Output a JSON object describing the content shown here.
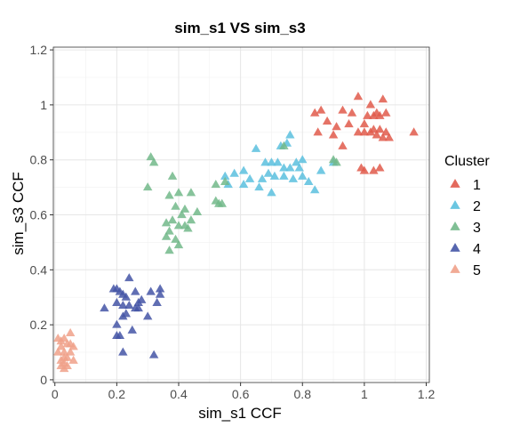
{
  "chart_data": {
    "type": "scatter",
    "title": "sim_s1 VS sim_s3",
    "xlabel": "sim_s1  CCF",
    "ylabel": "sim_s3  CCF",
    "xlim": [
      -0.005,
      1.21
    ],
    "ylim": [
      -0.01,
      1.21
    ],
    "x_ticks": [
      0,
      0.2,
      0.4,
      0.6,
      0.8,
      1,
      1.2
    ],
    "x_tick_labels": [
      "0",
      "0.2",
      "0.4",
      "0.6",
      "0.8",
      "1",
      "1.2"
    ],
    "y_ticks": [
      0,
      0.2,
      0.4,
      0.6,
      0.8,
      1,
      1.2
    ],
    "y_tick_labels": [
      "0",
      "0.2",
      "0.4",
      "0.6",
      "0.8",
      "1",
      "1.2"
    ],
    "grid": true,
    "marker": "triangle",
    "legend": {
      "title": "Cluster",
      "position": "right"
    },
    "series": [
      {
        "name": "1",
        "color": "#E05A4B",
        "points": [
          [
            0.98,
            1.03
          ],
          [
            1.02,
            1.0
          ],
          [
            1.06,
            1.02
          ],
          [
            0.93,
            0.98
          ],
          [
            0.96,
            0.97
          ],
          [
            1.04,
            0.97
          ],
          [
            1.05,
            0.96
          ],
          [
            1.07,
            0.97
          ],
          [
            0.84,
            0.97
          ],
          [
            0.86,
            0.98
          ],
          [
            0.88,
            0.94
          ],
          [
            1.01,
            0.96
          ],
          [
            1.03,
            0.96
          ],
          [
            0.91,
            0.92
          ],
          [
            0.95,
            0.93
          ],
          [
            1.0,
            0.93
          ],
          [
            1.03,
            0.91
          ],
          [
            1.05,
            0.91
          ],
          [
            0.85,
            0.9
          ],
          [
            0.9,
            0.89
          ],
          [
            0.98,
            0.9
          ],
          [
            1.0,
            0.9
          ],
          [
            1.02,
            0.9
          ],
          [
            1.04,
            0.89
          ],
          [
            1.07,
            0.9
          ],
          [
            1.08,
            0.88
          ],
          [
            1.16,
            0.9
          ],
          [
            0.99,
            0.77
          ],
          [
            1.0,
            0.76
          ],
          [
            1.03,
            0.76
          ],
          [
            1.05,
            0.77
          ],
          [
            0.93,
            0.85
          ],
          [
            1.06,
            0.88
          ]
        ]
      },
      {
        "name": "2",
        "color": "#5BC0DE",
        "points": [
          [
            0.76,
            0.89
          ],
          [
            0.75,
            0.86
          ],
          [
            0.73,
            0.85
          ],
          [
            0.65,
            0.84
          ],
          [
            0.7,
            0.79
          ],
          [
            0.68,
            0.79
          ],
          [
            0.72,
            0.79
          ],
          [
            0.78,
            0.79
          ],
          [
            0.8,
            0.8
          ],
          [
            0.79,
            0.77
          ],
          [
            0.76,
            0.77
          ],
          [
            0.74,
            0.77
          ],
          [
            0.61,
            0.76
          ],
          [
            0.55,
            0.74
          ],
          [
            0.58,
            0.75
          ],
          [
            0.63,
            0.73
          ],
          [
            0.67,
            0.73
          ],
          [
            0.69,
            0.75
          ],
          [
            0.71,
            0.74
          ],
          [
            0.74,
            0.74
          ],
          [
            0.77,
            0.73
          ],
          [
            0.8,
            0.74
          ],
          [
            0.86,
            0.76
          ],
          [
            0.9,
            0.79
          ],
          [
            0.82,
            0.72
          ],
          [
            0.66,
            0.7
          ],
          [
            0.61,
            0.71
          ],
          [
            0.56,
            0.71
          ],
          [
            0.84,
            0.69
          ],
          [
            0.7,
            0.68
          ]
        ]
      },
      {
        "name": "3",
        "color": "#72B88A",
        "points": [
          [
            0.31,
            0.81
          ],
          [
            0.32,
            0.79
          ],
          [
            0.38,
            0.74
          ],
          [
            0.44,
            0.68
          ],
          [
            0.46,
            0.61
          ],
          [
            0.4,
            0.68
          ],
          [
            0.37,
            0.67
          ],
          [
            0.39,
            0.63
          ],
          [
            0.42,
            0.62
          ],
          [
            0.41,
            0.6
          ],
          [
            0.44,
            0.58
          ],
          [
            0.42,
            0.56
          ],
          [
            0.43,
            0.55
          ],
          [
            0.4,
            0.56
          ],
          [
            0.38,
            0.58
          ],
          [
            0.36,
            0.57
          ],
          [
            0.37,
            0.54
          ],
          [
            0.36,
            0.52
          ],
          [
            0.39,
            0.51
          ],
          [
            0.4,
            0.49
          ],
          [
            0.37,
            0.47
          ],
          [
            0.52,
            0.71
          ],
          [
            0.52,
            0.65
          ],
          [
            0.53,
            0.64
          ],
          [
            0.54,
            0.64
          ],
          [
            0.3,
            0.7
          ],
          [
            0.74,
            0.85
          ],
          [
            0.9,
            0.8
          ],
          [
            0.91,
            0.79
          ],
          [
            0.55,
            0.72
          ]
        ]
      },
      {
        "name": "4",
        "color": "#4455A6",
        "points": [
          [
            0.24,
            0.37
          ],
          [
            0.2,
            0.33
          ],
          [
            0.21,
            0.32
          ],
          [
            0.22,
            0.31
          ],
          [
            0.26,
            0.32
          ],
          [
            0.31,
            0.32
          ],
          [
            0.34,
            0.33
          ],
          [
            0.34,
            0.31
          ],
          [
            0.23,
            0.3
          ],
          [
            0.28,
            0.29
          ],
          [
            0.2,
            0.28
          ],
          [
            0.24,
            0.27
          ],
          [
            0.26,
            0.26
          ],
          [
            0.27,
            0.26
          ],
          [
            0.33,
            0.28
          ],
          [
            0.16,
            0.26
          ],
          [
            0.3,
            0.23
          ],
          [
            0.22,
            0.23
          ],
          [
            0.2,
            0.2
          ],
          [
            0.25,
            0.18
          ],
          [
            0.2,
            0.16
          ],
          [
            0.21,
            0.16
          ],
          [
            0.22,
            0.1
          ],
          [
            0.32,
            0.09
          ],
          [
            0.23,
            0.24
          ],
          [
            0.22,
            0.27
          ],
          [
            0.27,
            0.28
          ],
          [
            0.19,
            0.33
          ]
        ]
      },
      {
        "name": "5",
        "color": "#F0A189",
        "points": [
          [
            0.05,
            0.17
          ],
          [
            0.01,
            0.15
          ],
          [
            0.02,
            0.14
          ],
          [
            0.03,
            0.15
          ],
          [
            0.02,
            0.12
          ],
          [
            0.04,
            0.13
          ],
          [
            0.06,
            0.12
          ],
          [
            0.03,
            0.1
          ],
          [
            0.05,
            0.1
          ],
          [
            0.04,
            0.08
          ],
          [
            0.06,
            0.07
          ],
          [
            0.02,
            0.07
          ],
          [
            0.03,
            0.06
          ],
          [
            0.04,
            0.05
          ],
          [
            0.02,
            0.05
          ],
          [
            0.03,
            0.04
          ],
          [
            0.05,
            0.13
          ],
          [
            0.01,
            0.1
          ],
          [
            0.03,
            0.08
          ]
        ]
      }
    ]
  }
}
